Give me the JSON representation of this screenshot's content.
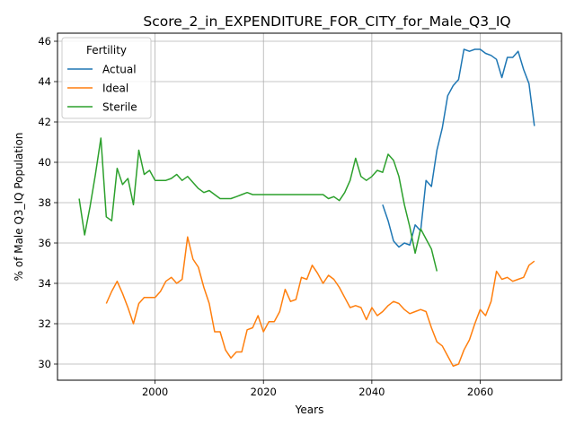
{
  "chart_data": {
    "type": "line",
    "title": "Score_2_in_EXPENDITURE_FOR_CITY_for_Male_Q3_IQ",
    "xlabel": "Years",
    "ylabel": "% of Male Q3_IQ Population",
    "xlim": [
      1982,
      2075
    ],
    "ylim": [
      29.2,
      46.4
    ],
    "x_ticks": [
      2000,
      2020,
      2040,
      2060
    ],
    "y_ticks": [
      30,
      32,
      34,
      36,
      38,
      40,
      42,
      44,
      46
    ],
    "grid": true,
    "legend": {
      "title": "Fertility",
      "placement": "top-left"
    },
    "series": [
      {
        "name": "Actual",
        "color": "#1f77b4",
        "x": [
          2042,
          2043,
          2044,
          2045,
          2046,
          2047,
          2048,
          2049,
          2050,
          2051,
          2052,
          2053,
          2054,
          2055,
          2056,
          2057,
          2058,
          2059,
          2060,
          2061,
          2062,
          2063,
          2064,
          2065,
          2066,
          2067,
          2068,
          2069,
          2070
        ],
        "values": [
          37.9,
          37.1,
          36.1,
          35.8,
          36.0,
          35.9,
          36.9,
          36.6,
          39.1,
          38.8,
          40.6,
          41.7,
          43.3,
          43.8,
          44.1,
          45.6,
          45.5,
          45.6,
          45.6,
          45.4,
          45.3,
          45.1,
          44.2,
          45.2,
          45.2,
          45.5,
          44.6,
          43.9,
          41.8
        ]
      },
      {
        "name": "Ideal",
        "color": "#ff7f0e",
        "x": [
          1991,
          1992,
          1993,
          1994,
          1995,
          1996,
          1997,
          1998,
          1999,
          2000,
          2001,
          2002,
          2003,
          2004,
          2005,
          2006,
          2007,
          2008,
          2009,
          2010,
          2011,
          2012,
          2013,
          2014,
          2015,
          2016,
          2017,
          2018,
          2019,
          2020,
          2021,
          2022,
          2023,
          2024,
          2025,
          2026,
          2027,
          2028,
          2029,
          2030,
          2031,
          2032,
          2033,
          2034,
          2035,
          2036,
          2037,
          2038,
          2039,
          2040,
          2041,
          2042,
          2043,
          2044,
          2045,
          2046,
          2047,
          2048,
          2049,
          2050,
          2051,
          2052,
          2053,
          2054,
          2055,
          2056,
          2057,
          2058,
          2059,
          2060,
          2061,
          2062,
          2063,
          2064,
          2065,
          2066,
          2067,
          2068,
          2069,
          2070
        ],
        "values": [
          33.0,
          33.6,
          34.1,
          33.5,
          32.8,
          32.0,
          33.0,
          33.3,
          33.3,
          33.3,
          33.6,
          34.1,
          34.3,
          34.0,
          34.2,
          36.3,
          35.2,
          34.8,
          33.8,
          33.0,
          31.6,
          31.6,
          30.7,
          30.3,
          30.6,
          30.6,
          31.7,
          31.8,
          32.4,
          31.6,
          32.1,
          32.1,
          32.6,
          33.7,
          33.1,
          33.2,
          34.3,
          34.2,
          34.9,
          34.5,
          34.0,
          34.4,
          34.2,
          33.8,
          33.3,
          32.8,
          32.9,
          32.8,
          32.2,
          32.8,
          32.4,
          32.6,
          32.9,
          33.1,
          33.0,
          32.7,
          32.5,
          32.6,
          32.7,
          32.6,
          31.8,
          31.1,
          30.9,
          30.4,
          29.9,
          30.0,
          30.7,
          31.2,
          32.0,
          32.7,
          32.4,
          33.1,
          34.6,
          34.2,
          34.3,
          34.1,
          34.2,
          34.3,
          34.9,
          35.1
        ]
      },
      {
        "name": "Sterile",
        "color": "#2ca02c",
        "x": [
          1986,
          1987,
          1988,
          1989,
          1990,
          1991,
          1992,
          1993,
          1994,
          1995,
          1996,
          1997,
          1998,
          1999,
          2000,
          2001,
          2002,
          2003,
          2004,
          2005,
          2006,
          2007,
          2008,
          2009,
          2010,
          2011,
          2012,
          2013,
          2014,
          2015,
          2016,
          2017,
          2018,
          2019,
          2020,
          2021,
          2022,
          2023,
          2024,
          2025,
          2026,
          2027,
          2028,
          2029,
          2030,
          2031,
          2032,
          2033,
          2034,
          2035,
          2036,
          2037,
          2038,
          2039,
          2040,
          2041,
          2042,
          2043,
          2044,
          2045,
          2046,
          2047,
          2048,
          2049,
          2050,
          2051,
          2052
        ],
        "values": [
          38.2,
          36.4,
          37.8,
          39.4,
          41.2,
          37.3,
          37.1,
          39.7,
          38.9,
          39.2,
          37.9,
          40.6,
          39.4,
          39.6,
          39.1,
          39.1,
          39.1,
          39.2,
          39.4,
          39.1,
          39.3,
          39.0,
          38.7,
          38.5,
          38.6,
          38.4,
          38.2,
          38.2,
          38.2,
          38.3,
          38.4,
          38.5,
          38.4,
          38.4,
          38.4,
          38.4,
          38.4,
          38.4,
          38.4,
          38.4,
          38.4,
          38.4,
          38.4,
          38.4,
          38.4,
          38.4,
          38.2,
          38.3,
          38.1,
          38.5,
          39.1,
          40.2,
          39.3,
          39.1,
          39.3,
          39.6,
          39.5,
          40.4,
          40.1,
          39.3,
          37.9,
          36.8,
          35.5,
          36.7,
          36.2,
          35.7,
          34.6
        ]
      }
    ]
  }
}
